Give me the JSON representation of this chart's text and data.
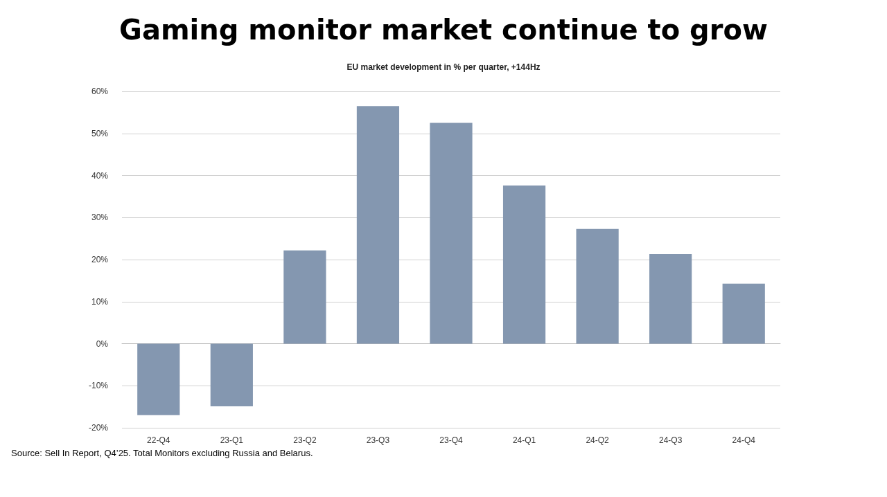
{
  "chart_data": {
    "type": "bar",
    "title": "Gaming monitor market continue to grow",
    "subtitle": "EU market development in % per quarter, +144Hz",
    "categories": [
      "22-Q4",
      "23-Q1",
      "23-Q2",
      "23-Q3",
      "23-Q4",
      "24-Q1",
      "24-Q2",
      "24-Q3",
      "24-Q4"
    ],
    "values": [
      -17.0,
      -14.9,
      22.2,
      56.5,
      52.5,
      37.6,
      27.3,
      21.3,
      14.3
    ],
    "color": "#8497b0",
    "ylim": [
      -20,
      60
    ],
    "yticks": [
      {
        "value": -20,
        "label": "-20%"
      },
      {
        "value": -10,
        "label": "-10%"
      },
      {
        "value": 0,
        "label": "0%"
      },
      {
        "value": 10,
        "label": "10%"
      },
      {
        "value": 20,
        "label": "20%"
      },
      {
        "value": 30,
        "label": "30%"
      },
      {
        "value": 40,
        "label": "40%"
      },
      {
        "value": 50,
        "label": "50%"
      },
      {
        "value": 60,
        "label": "60%"
      }
    ],
    "grid": "y",
    "annotations": [
      "Source: Sell In Report, Q4’25. Total Monitors excluding Russia and Belarus."
    ]
  }
}
